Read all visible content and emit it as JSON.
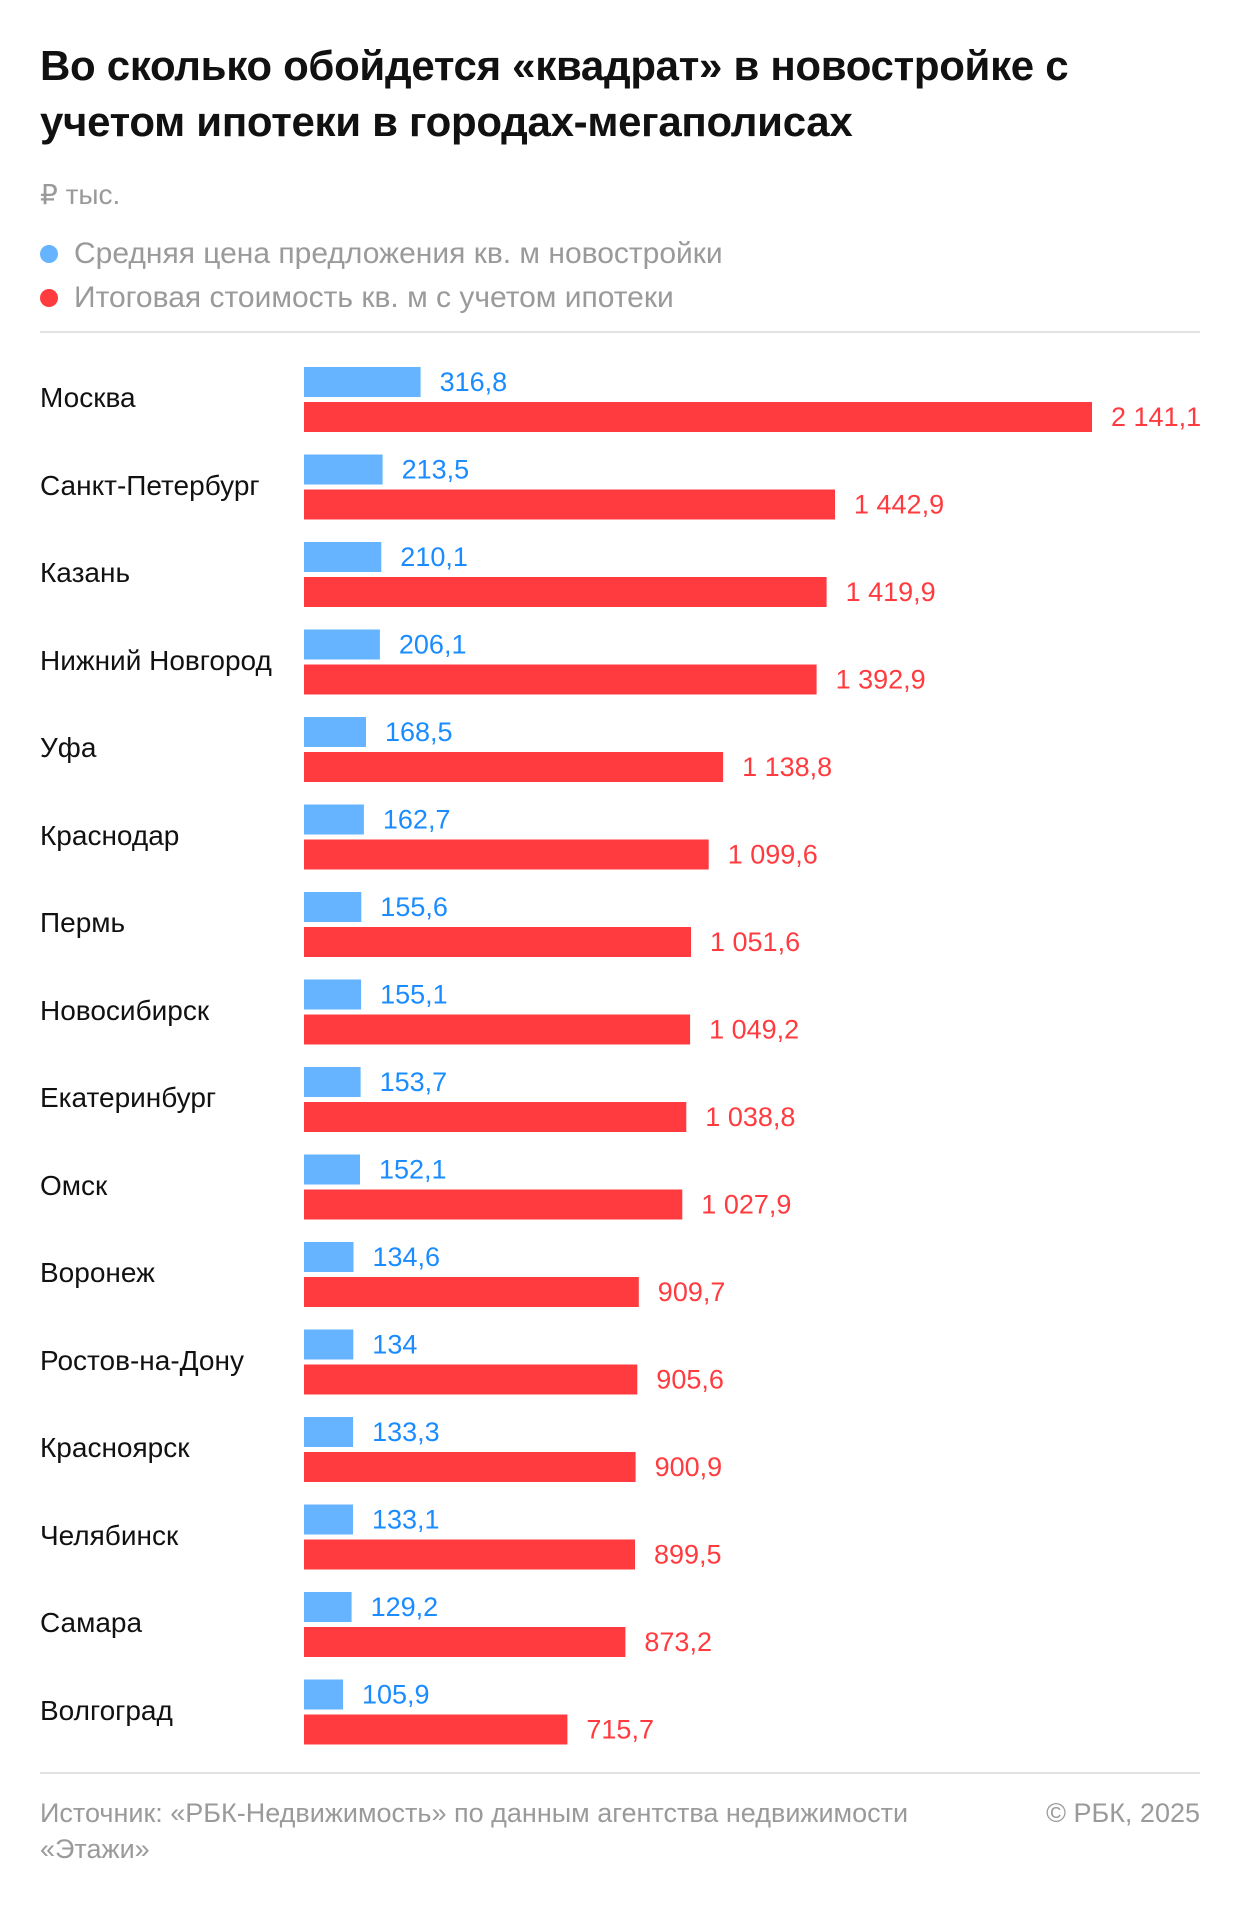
{
  "title": "Во сколько обойдется «квадрат» в новостройке с учетом ипотеки в городах-мегаполисах",
  "unit_label": "₽ тыс.",
  "footer": {
    "source": "Источник: «РБК-Недвижимость» по данным агентства недвижимости «Этажи»",
    "copyright": "© РБК, 2025"
  },
  "chart_data": {
    "type": "bar",
    "orientation": "horizontal",
    "grid": false,
    "legend_position": "top",
    "categories": [
      "Москва",
      "Санкт-Петербург",
      "Казань",
      "Нижний Новгород",
      "Уфа",
      "Краснодар",
      "Пермь",
      "Новосибирск",
      "Екатеринбург",
      "Омск",
      "Воронеж",
      "Ростов-на-Дону",
      "Красноярск",
      "Челябинск",
      "Самара",
      "Волгоград"
    ],
    "series": [
      {
        "name": "Средняя цена предложения кв. м новостройки",
        "color": "#66b3ff",
        "label_color": "#1a8cff",
        "values": [
          316.8,
          213.5,
          210.1,
          206.1,
          168.5,
          162.7,
          155.6,
          155.1,
          153.7,
          152.1,
          134.6,
          134,
          133.3,
          133.1,
          129.2,
          105.9
        ],
        "labels": [
          "316,8",
          "213,5",
          "210,1",
          "206,1",
          "168,5",
          "162,7",
          "155,6",
          "155,1",
          "153,7",
          "152,1",
          "134,6",
          "134",
          "133,3",
          "133,1",
          "129,2",
          "105,9"
        ]
      },
      {
        "name": "Итоговая стоимость кв. м с учетом ипотеки",
        "color": "#ff3b3f",
        "label_color": "#ff3b3f",
        "values": [
          2141.1,
          1442.9,
          1419.9,
          1392.9,
          1138.8,
          1099.6,
          1051.6,
          1049.2,
          1038.8,
          1027.9,
          909.7,
          905.6,
          900.9,
          899.5,
          873.2,
          715.7
        ],
        "labels": [
          "2 141,1",
          "1 442,9",
          "1 419,9",
          "1 392,9",
          "1 138,8",
          "1 099,6",
          "1 051,6",
          "1 049,2",
          "1 038,8",
          "1 027,9",
          "909,7",
          "905,6",
          "900,9",
          "899,5",
          "873,2",
          "715,7"
        ]
      }
    ],
    "xlim": [
      0,
      2141.1
    ]
  }
}
